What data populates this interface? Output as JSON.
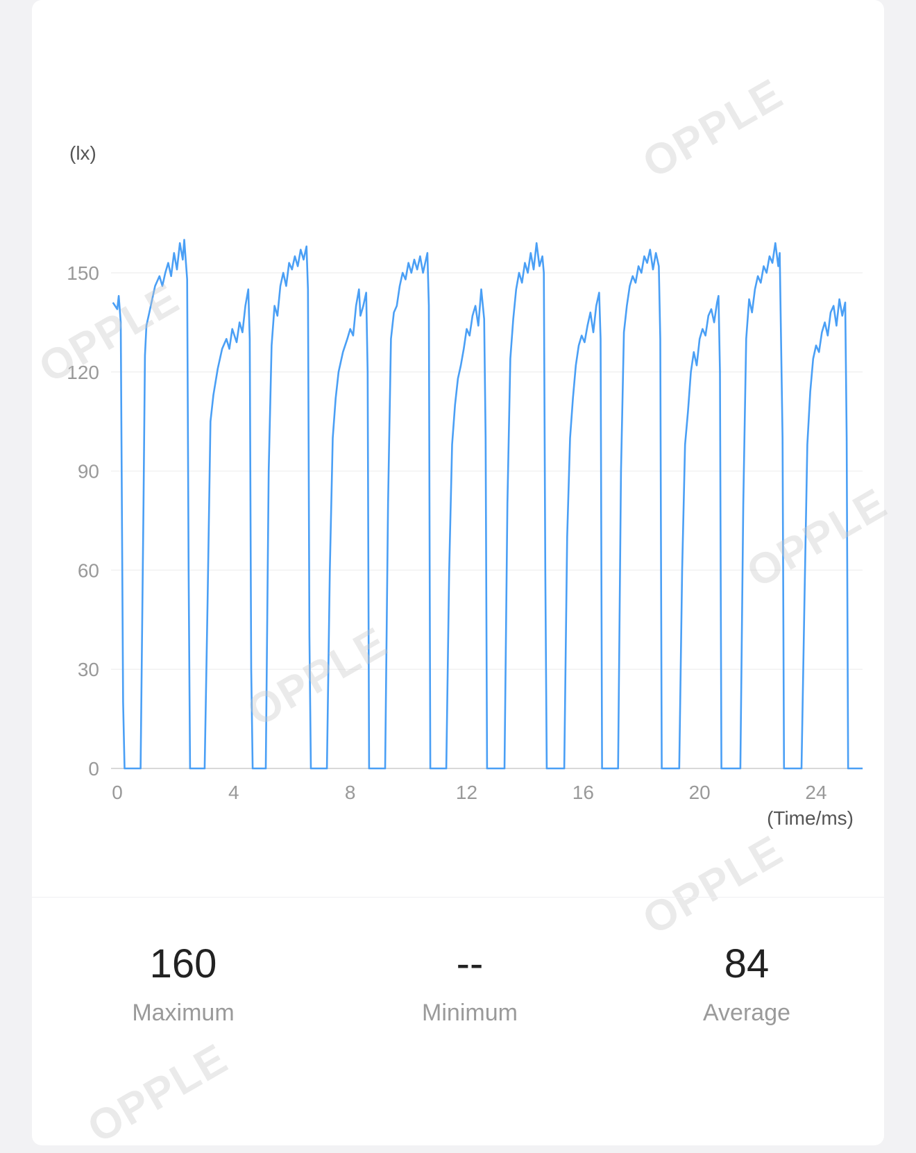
{
  "chart_data": {
    "type": "line",
    "y_unit_label": "(lx)",
    "x_unit_label": "(Time/ms)",
    "ylim": [
      0,
      150
    ],
    "yticks": [
      0,
      30,
      60,
      90,
      120,
      150
    ],
    "xticks": [
      0,
      4,
      8,
      12,
      16,
      20,
      24
    ],
    "xlim": [
      -0.2,
      25.6
    ],
    "grid": true,
    "series": [
      {
        "color": "#4a9ff5",
        "points": [
          [
            -0.15,
            141
          ],
          [
            0.0,
            139
          ],
          [
            0.05,
            143
          ],
          [
            0.12,
            135
          ],
          [
            0.2,
            20
          ],
          [
            0.25,
            0
          ],
          [
            0.8,
            0
          ],
          [
            0.9,
            80
          ],
          [
            0.95,
            125
          ],
          [
            1.0,
            134
          ],
          [
            1.1,
            138
          ],
          [
            1.2,
            142
          ],
          [
            1.3,
            146
          ],
          [
            1.45,
            149
          ],
          [
            1.55,
            146
          ],
          [
            1.65,
            150
          ],
          [
            1.75,
            153
          ],
          [
            1.85,
            149
          ],
          [
            1.95,
            156
          ],
          [
            2.05,
            151
          ],
          [
            2.15,
            159
          ],
          [
            2.25,
            154
          ],
          [
            2.3,
            160
          ],
          [
            2.4,
            148
          ],
          [
            2.45,
            60
          ],
          [
            2.5,
            0
          ],
          [
            3.0,
            0
          ],
          [
            3.1,
            50
          ],
          [
            3.2,
            105
          ],
          [
            3.3,
            113
          ],
          [
            3.45,
            121
          ],
          [
            3.6,
            127
          ],
          [
            3.75,
            130
          ],
          [
            3.85,
            127
          ],
          [
            3.95,
            133
          ],
          [
            4.1,
            129
          ],
          [
            4.2,
            135
          ],
          [
            4.3,
            132
          ],
          [
            4.4,
            140
          ],
          [
            4.5,
            145
          ],
          [
            4.55,
            130
          ],
          [
            4.6,
            30
          ],
          [
            4.65,
            0
          ],
          [
            5.1,
            0
          ],
          [
            5.2,
            90
          ],
          [
            5.3,
            128
          ],
          [
            5.4,
            140
          ],
          [
            5.5,
            137
          ],
          [
            5.6,
            146
          ],
          [
            5.7,
            150
          ],
          [
            5.8,
            146
          ],
          [
            5.9,
            153
          ],
          [
            6.0,
            151
          ],
          [
            6.1,
            155
          ],
          [
            6.2,
            152
          ],
          [
            6.3,
            157
          ],
          [
            6.4,
            154
          ],
          [
            6.5,
            158
          ],
          [
            6.55,
            145
          ],
          [
            6.6,
            40
          ],
          [
            6.65,
            0
          ],
          [
            7.2,
            0
          ],
          [
            7.3,
            60
          ],
          [
            7.4,
            100
          ],
          [
            7.5,
            112
          ],
          [
            7.6,
            120
          ],
          [
            7.75,
            126
          ],
          [
            7.9,
            130
          ],
          [
            8.0,
            133
          ],
          [
            8.1,
            131
          ],
          [
            8.2,
            140
          ],
          [
            8.3,
            145
          ],
          [
            8.35,
            137
          ],
          [
            8.45,
            140
          ],
          [
            8.55,
            144
          ],
          [
            8.6,
            120
          ],
          [
            8.65,
            0
          ],
          [
            9.2,
            0
          ],
          [
            9.3,
            80
          ],
          [
            9.4,
            130
          ],
          [
            9.5,
            138
          ],
          [
            9.6,
            140
          ],
          [
            9.7,
            146
          ],
          [
            9.8,
            150
          ],
          [
            9.9,
            148
          ],
          [
            10.0,
            153
          ],
          [
            10.1,
            150
          ],
          [
            10.2,
            154
          ],
          [
            10.3,
            151
          ],
          [
            10.4,
            155
          ],
          [
            10.5,
            150
          ],
          [
            10.6,
            154
          ],
          [
            10.65,
            156
          ],
          [
            10.7,
            140
          ],
          [
            10.75,
            0
          ],
          [
            11.3,
            0
          ],
          [
            11.4,
            60
          ],
          [
            11.5,
            98
          ],
          [
            11.6,
            110
          ],
          [
            11.7,
            118
          ],
          [
            11.8,
            122
          ],
          [
            11.9,
            127
          ],
          [
            12.0,
            133
          ],
          [
            12.1,
            131
          ],
          [
            12.2,
            137
          ],
          [
            12.3,
            140
          ],
          [
            12.4,
            134
          ],
          [
            12.5,
            145
          ],
          [
            12.6,
            136
          ],
          [
            12.65,
            100
          ],
          [
            12.7,
            0
          ],
          [
            13.3,
            0
          ],
          [
            13.4,
            80
          ],
          [
            13.5,
            124
          ],
          [
            13.6,
            136
          ],
          [
            13.7,
            145
          ],
          [
            13.8,
            150
          ],
          [
            13.9,
            147
          ],
          [
            14.0,
            153
          ],
          [
            14.1,
            150
          ],
          [
            14.2,
            156
          ],
          [
            14.3,
            151
          ],
          [
            14.4,
            159
          ],
          [
            14.5,
            152
          ],
          [
            14.6,
            155
          ],
          [
            14.65,
            150
          ],
          [
            14.7,
            60
          ],
          [
            14.75,
            0
          ],
          [
            15.35,
            0
          ],
          [
            15.45,
            70
          ],
          [
            15.55,
            100
          ],
          [
            15.65,
            112
          ],
          [
            15.75,
            122
          ],
          [
            15.85,
            128
          ],
          [
            15.95,
            131
          ],
          [
            16.05,
            129
          ],
          [
            16.15,
            134
          ],
          [
            16.25,
            138
          ],
          [
            16.35,
            132
          ],
          [
            16.45,
            140
          ],
          [
            16.55,
            144
          ],
          [
            16.6,
            130
          ],
          [
            16.65,
            0
          ],
          [
            17.2,
            0
          ],
          [
            17.3,
            90
          ],
          [
            17.4,
            132
          ],
          [
            17.5,
            140
          ],
          [
            17.6,
            146
          ],
          [
            17.7,
            149
          ],
          [
            17.8,
            147
          ],
          [
            17.9,
            152
          ],
          [
            18.0,
            150
          ],
          [
            18.1,
            155
          ],
          [
            18.2,
            153
          ],
          [
            18.3,
            157
          ],
          [
            18.4,
            151
          ],
          [
            18.5,
            156
          ],
          [
            18.6,
            152
          ],
          [
            18.65,
            130
          ],
          [
            18.7,
            0
          ],
          [
            19.3,
            0
          ],
          [
            19.4,
            60
          ],
          [
            19.5,
            98
          ],
          [
            19.6,
            108
          ],
          [
            19.7,
            120
          ],
          [
            19.8,
            126
          ],
          [
            19.9,
            122
          ],
          [
            20.0,
            130
          ],
          [
            20.1,
            133
          ],
          [
            20.2,
            131
          ],
          [
            20.3,
            137
          ],
          [
            20.4,
            139
          ],
          [
            20.5,
            135
          ],
          [
            20.6,
            141
          ],
          [
            20.65,
            143
          ],
          [
            20.7,
            120
          ],
          [
            20.75,
            0
          ],
          [
            21.4,
            0
          ],
          [
            21.5,
            80
          ],
          [
            21.6,
            130
          ],
          [
            21.7,
            142
          ],
          [
            21.8,
            138
          ],
          [
            21.9,
            145
          ],
          [
            22.0,
            149
          ],
          [
            22.1,
            147
          ],
          [
            22.2,
            152
          ],
          [
            22.3,
            150
          ],
          [
            22.4,
            155
          ],
          [
            22.5,
            153
          ],
          [
            22.6,
            159
          ],
          [
            22.7,
            152
          ],
          [
            22.75,
            156
          ],
          [
            22.85,
            100
          ],
          [
            22.9,
            0
          ],
          [
            23.5,
            0
          ],
          [
            23.6,
            50
          ],
          [
            23.7,
            98
          ],
          [
            23.8,
            114
          ],
          [
            23.9,
            124
          ],
          [
            24.0,
            128
          ],
          [
            24.1,
            126
          ],
          [
            24.2,
            132
          ],
          [
            24.3,
            135
          ],
          [
            24.4,
            131
          ],
          [
            24.5,
            138
          ],
          [
            24.6,
            140
          ],
          [
            24.7,
            134
          ],
          [
            24.8,
            142
          ],
          [
            24.9,
            137
          ],
          [
            25.0,
            141
          ],
          [
            25.05,
            100
          ],
          [
            25.1,
            0
          ],
          [
            25.6,
            0
          ]
        ]
      }
    ]
  },
  "stats": {
    "maximum_value": "160",
    "maximum_label": "Maximum",
    "minimum_value": "--",
    "minimum_label": "Minimum",
    "average_value": "84",
    "average_label": "Average"
  },
  "watermark_text": "OPPLE"
}
